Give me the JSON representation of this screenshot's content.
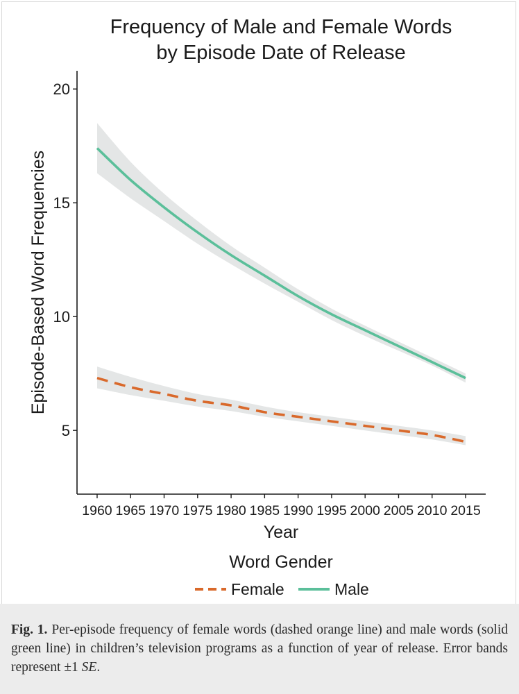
{
  "chart_data": {
    "type": "line",
    "title_line1": "Frequency of Male and Female Words",
    "title_line2": "by Episode Date of Release",
    "xlabel": "Year",
    "ylabel": "Episode-Based Word Frequencies",
    "xlim": [
      1957,
      2018
    ],
    "ylim": [
      2.2,
      20.8
    ],
    "xticks": [
      1960,
      1965,
      1970,
      1975,
      1980,
      1985,
      1990,
      1995,
      2000,
      2005,
      2010,
      2015
    ],
    "yticks": [
      5,
      10,
      15,
      20
    ],
    "legend_title": "Word Gender",
    "legend_position": "bottom",
    "x": [
      1960,
      1965,
      1970,
      1975,
      1980,
      1985,
      1990,
      1995,
      2000,
      2005,
      2010,
      2015
    ],
    "series": [
      {
        "name": "Female",
        "style": "dashed",
        "color": "#D9692B",
        "values": [
          7.3,
          6.9,
          6.6,
          6.3,
          6.1,
          5.8,
          5.6,
          5.4,
          5.2,
          5.0,
          4.8,
          4.5
        ],
        "lower": [
          6.85,
          6.55,
          6.3,
          6.05,
          5.85,
          5.6,
          5.4,
          5.2,
          5.0,
          4.8,
          4.6,
          4.35
        ],
        "upper": [
          7.8,
          7.35,
          6.95,
          6.6,
          6.35,
          6.05,
          5.8,
          5.6,
          5.4,
          5.2,
          5.0,
          4.75
        ]
      },
      {
        "name": "Male",
        "style": "solid",
        "color": "#5BBF9A",
        "values": [
          17.4,
          16.0,
          14.8,
          13.7,
          12.7,
          11.8,
          10.9,
          10.1,
          9.4,
          8.7,
          8.0,
          7.3
        ],
        "lower": [
          16.3,
          15.2,
          14.2,
          13.2,
          12.3,
          11.45,
          10.65,
          9.85,
          9.15,
          8.5,
          7.85,
          7.1
        ],
        "upper": [
          18.5,
          16.8,
          15.4,
          14.2,
          13.1,
          12.15,
          11.2,
          10.35,
          9.6,
          8.9,
          8.2,
          7.5
        ]
      }
    ],
    "colors": {
      "band": "#E4E6E6",
      "axis": "#1a1a1a"
    }
  },
  "caption": {
    "label": "Fig. 1.",
    "text": "Per-episode frequency of female words (dashed orange line) and male words (solid green line) in children’s television programs as a function of year of release. Error bands represent ±1",
    "se": "SE",
    "end": "."
  }
}
